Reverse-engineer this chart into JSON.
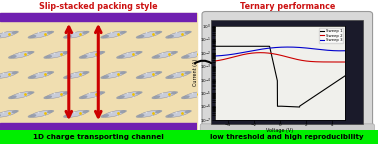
{
  "title_left": "Slip-stacked packing style",
  "title_right": "Ternary performance",
  "label_left": "1D charge transporting channel",
  "label_right": "low threshold and high reproducibility",
  "label_bg": "#00ee00",
  "left_bg": "#f0deb0",
  "purple_bar_color": "#7020b0",
  "red_arrow_color": "#cc0000",
  "title_left_color": "#cc1111",
  "title_right_color": "#cc1111",
  "sweep1_color": "#000000",
  "sweep2_color": "#cc0000",
  "sweep3_color": "#0000cc",
  "figsize": [
    3.78,
    1.44
  ],
  "dpi": 100
}
